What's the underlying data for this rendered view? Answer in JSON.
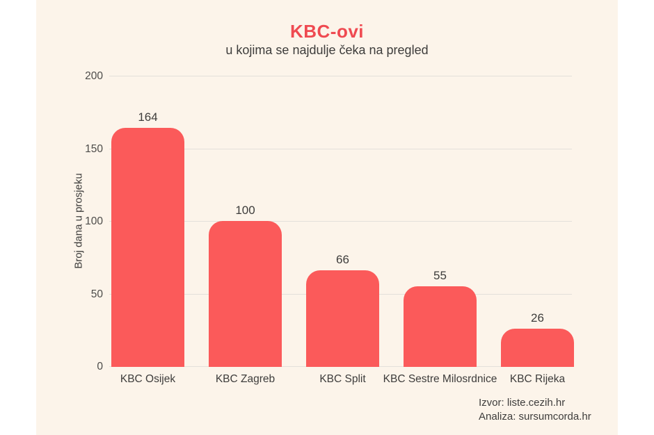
{
  "title": "KBC-ovi",
  "subtitle": "u kojima se najdulje čeka na pregled",
  "y_axis_title": "Broj dana u prosjeku",
  "source": {
    "line1": "Izvor: liste.cezih.hr",
    "line2": "Analiza: sursumcorda.hr"
  },
  "colors": {
    "bar": "#fb5a5a",
    "title": "#ef4a51",
    "panel": "#fcf4ea",
    "grid": "#e3e0da",
    "text": "#3d3c3b"
  },
  "chart_data": {
    "type": "bar",
    "title": "KBC-ovi",
    "subtitle": "u kojima se najdulje čeka na pregled",
    "categories": [
      "KBC Osijek",
      "KBC Zagreb",
      "KBC Split",
      "KBC Sestre Milosrdnice",
      "KBC Rijeka"
    ],
    "values": [
      164,
      100,
      66,
      55,
      26
    ],
    "xlabel": "",
    "ylabel": "Broj dana u prosjeku",
    "ylim": [
      0,
      200
    ],
    "yticks": [
      0,
      50,
      100,
      150,
      200
    ],
    "grid": true,
    "legend_position": "none"
  }
}
